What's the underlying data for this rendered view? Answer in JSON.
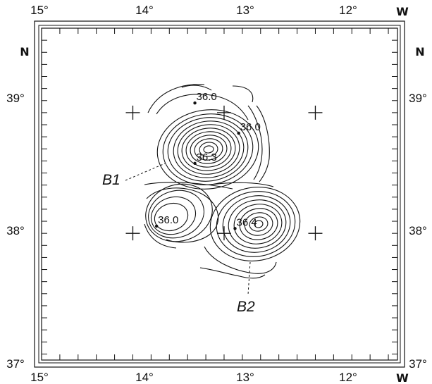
{
  "map": {
    "top_lon_labels": [
      "15°",
      "14°",
      "13°",
      "12°"
    ],
    "top_corner_label": "W",
    "bottom_lon_labels": [
      "15°",
      "14°",
      "13°",
      "12°"
    ],
    "bottom_corner_label": "W",
    "left_north_label": "N",
    "right_north_label": "N",
    "left_lat_labels": [
      "39°",
      "38°",
      "37°"
    ],
    "right_lat_labels": [
      "39°",
      "38°",
      "37°"
    ],
    "lon_range": [
      15,
      11.1
    ],
    "lat_range": [
      36.95,
      39.7
    ],
    "grid_crosses": [
      {
        "lon": 14,
        "lat": 39
      },
      {
        "lon": 13,
        "lat": 39
      },
      {
        "lon": 12,
        "lat": 39
      },
      {
        "lon": 14,
        "lat": 38
      },
      {
        "lon": 13,
        "lat": 38
      },
      {
        "lon": 12,
        "lat": 38
      }
    ],
    "point_labels": [
      {
        "text": "36.0",
        "lon": 13.32,
        "lat": 39.08
      },
      {
        "text": "36.0",
        "lon": 12.84,
        "lat": 38.83
      },
      {
        "text": "36.3",
        "lon": 13.32,
        "lat": 38.58
      },
      {
        "text": "36.0",
        "lon": 13.74,
        "lat": 38.06
      },
      {
        "text": "36.4",
        "lon": 12.88,
        "lat": 38.04
      }
    ],
    "eddy_labels": [
      {
        "text": "B1",
        "lon": 13.98,
        "lat": 38.48
      },
      {
        "text": "B2",
        "lon": 12.98,
        "lat": 37.59
      }
    ]
  }
}
